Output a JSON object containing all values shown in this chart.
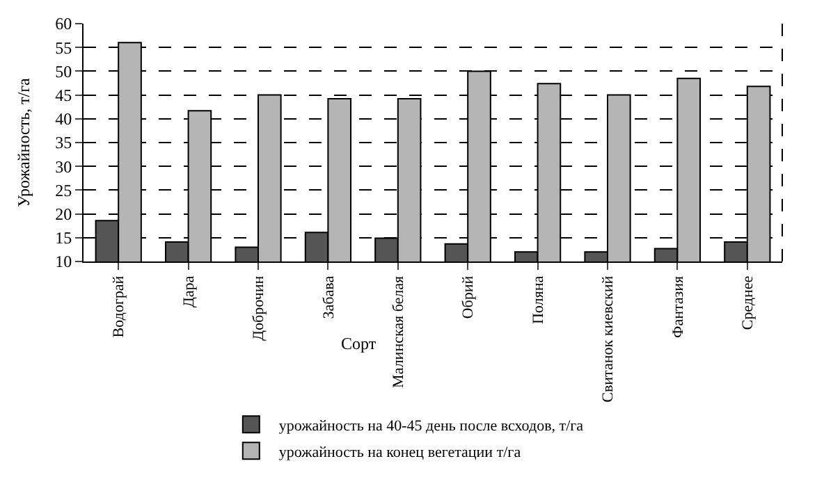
{
  "chart_data": {
    "type": "bar",
    "xlabel": "Сорт",
    "ylabel": "Урожайность, т/га",
    "categories": [
      "Водограй",
      "Дара",
      "Доброчин",
      "Забава",
      "Малинская белая",
      "Обрий",
      "Поляна",
      "Свитанок киевский",
      "Фантазия",
      "Среднее"
    ],
    "series": [
      {
        "name": "урожайность на 40-45 день после всходов, т/га",
        "color": "#555555",
        "values": [
          18.6,
          14.1,
          13.0,
          16.1,
          14.9,
          13.7,
          12.0,
          12.0,
          12.7,
          14.1
        ]
      },
      {
        "name": "урожайность на конец вегетации т/га",
        "color": "#b5b5b5",
        "values": [
          56.0,
          41.7,
          45.0,
          44.2,
          44.2,
          50.0,
          47.4,
          45.0,
          48.5,
          46.8
        ]
      }
    ],
    "ylim": [
      10,
      60
    ],
    "yticks": [
      10,
      15,
      20,
      25,
      30,
      35,
      40,
      45,
      50,
      55,
      60
    ],
    "grid": "y",
    "legend": "bottom"
  }
}
